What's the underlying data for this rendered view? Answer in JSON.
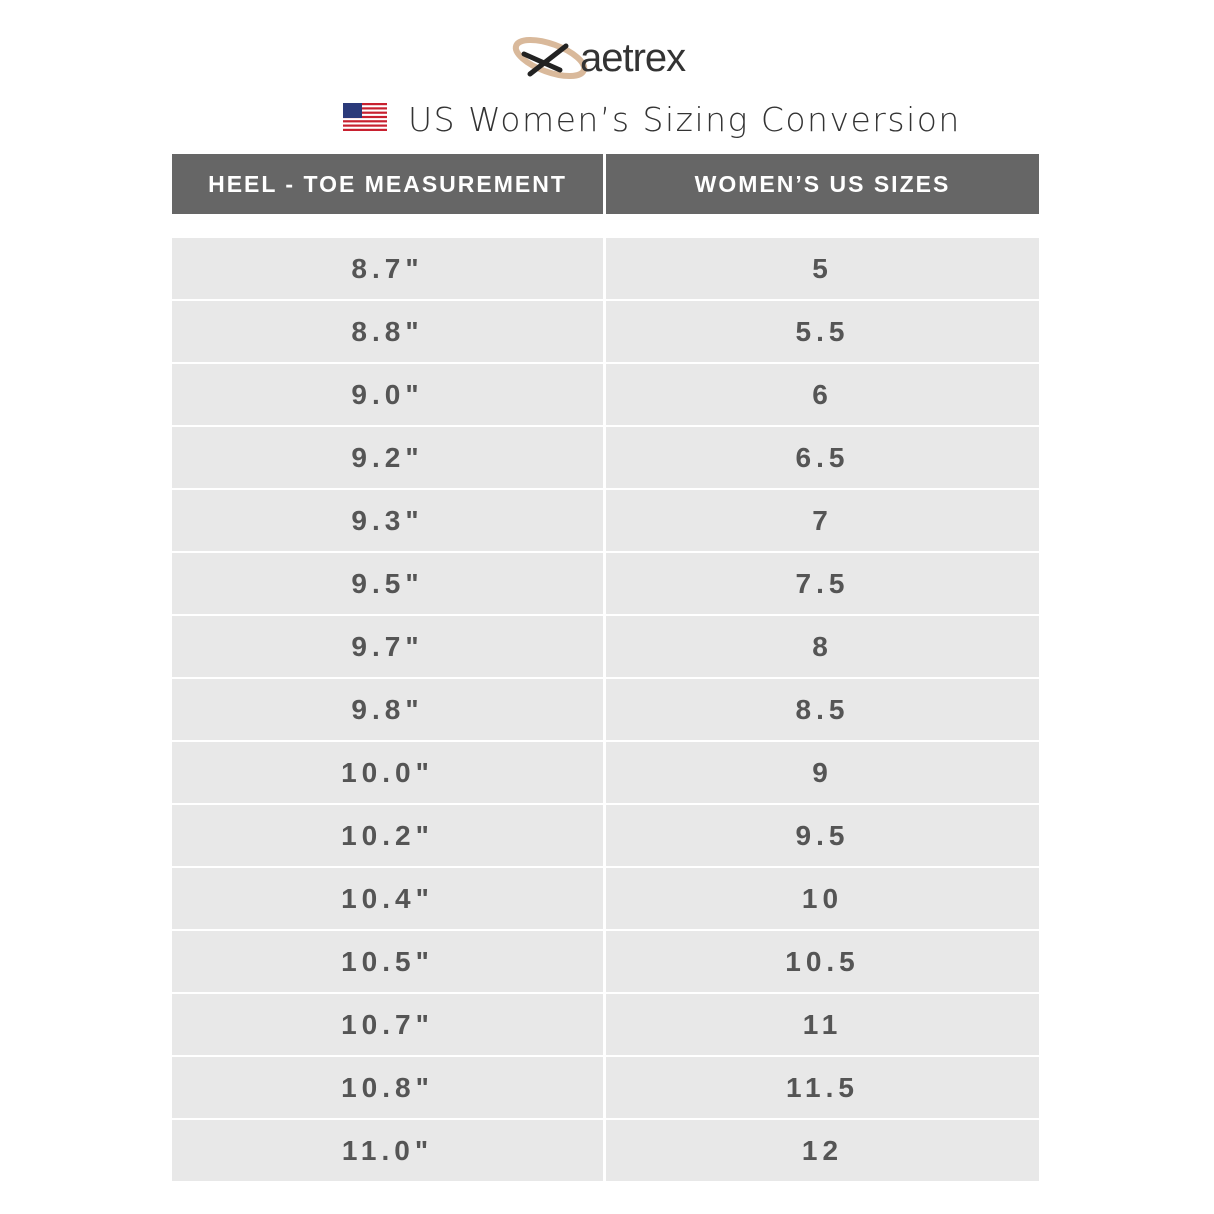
{
  "header": {
    "brand": "aetrex",
    "title": "US Women’s Sizing Conversion"
  },
  "table": {
    "columns": [
      "HEEL - TOE MEASUREMENT",
      "WOMEN’S US SIZES"
    ],
    "rows": [
      [
        "8.7\"",
        "5"
      ],
      [
        "8.8\"",
        "5.5"
      ],
      [
        "9.0\"",
        "6"
      ],
      [
        "9.2\"",
        "6.5"
      ],
      [
        "9.3\"",
        "7"
      ],
      [
        "9.5\"",
        "7.5"
      ],
      [
        "9.7\"",
        "8"
      ],
      [
        "9.8\"",
        "8.5"
      ],
      [
        "10.0\"",
        "9"
      ],
      [
        "10.2\"",
        "9.5"
      ],
      [
        "10.4\"",
        "10"
      ],
      [
        "10.5\"",
        "10.5"
      ],
      [
        "10.7\"",
        "11"
      ],
      [
        "10.8\"",
        "11.5"
      ],
      [
        "11.0\"",
        "12"
      ]
    ]
  }
}
